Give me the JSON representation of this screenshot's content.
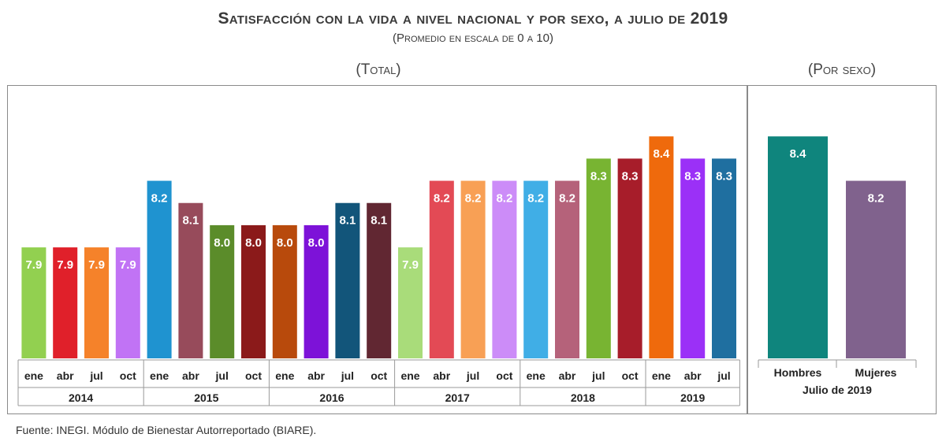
{
  "title": "Satisfacción con la vida a nivel nacional y por sexo, a julio de 2019",
  "subtitle": "(Promedio en escala de 0 a 10)",
  "panel_total_label": "(Total)",
  "panel_sex_label": "(Por sexo)",
  "footer": "Fuente: INEGI. Módulo de Bienestar Autorreportado (BIARE).",
  "chart_data": [
    {
      "type": "bar",
      "title": "(Total)",
      "categories": [
        "ene",
        "abr",
        "jul",
        "oct",
        "ene",
        "abr",
        "jul",
        "oct",
        "ene",
        "abr",
        "jul",
        "oct",
        "ene",
        "abr",
        "jul",
        "oct",
        "ene",
        "abr",
        "jul",
        "oct",
        "ene",
        "abr",
        "jul"
      ],
      "groups": [
        {
          "label": "2014",
          "count": 4
        },
        {
          "label": "2015",
          "count": 4
        },
        {
          "label": "2016",
          "count": 4
        },
        {
          "label": "2017",
          "count": 4
        },
        {
          "label": "2018",
          "count": 4
        },
        {
          "label": "2019",
          "count": 3
        }
      ],
      "values": [
        7.9,
        7.9,
        7.9,
        7.9,
        8.2,
        8.1,
        8.0,
        8.0,
        8.0,
        8.0,
        8.1,
        8.1,
        7.9,
        8.2,
        8.2,
        8.2,
        8.2,
        8.2,
        8.3,
        8.3,
        8.4,
        8.3,
        8.3
      ],
      "labels": [
        "7.9",
        "7.9",
        "7.9",
        "7.9",
        "8.2",
        "8.1",
        "8.0",
        "8.0",
        "8.0",
        "8.0",
        "8.1",
        "8.1",
        "7.9",
        "8.2",
        "8.2",
        "8.2",
        "8.2",
        "8.2",
        "8.3",
        "8.3",
        "8.4",
        "8.3",
        "8.3"
      ],
      "colors": [
        "#92d050",
        "#e0202a",
        "#f5822a",
        "#c173f5",
        "#1f93d0",
        "#974b5b",
        "#5b8c2a",
        "#8b1a1a",
        "#b84a0c",
        "#7d12d8",
        "#12557a",
        "#612732",
        "#a9dc7a",
        "#e34a55",
        "#f8a055",
        "#cc8cf8",
        "#40aee6",
        "#b5627a",
        "#78b432",
        "#a71d2a",
        "#ef6a0c",
        "#9b30f7",
        "#1f6fa0"
      ],
      "ylim": [
        7.4,
        8.5
      ],
      "xlabel": "",
      "ylabel": "",
      "grid": false
    },
    {
      "type": "bar",
      "title": "(Por sexo)",
      "categories": [
        "Hombres",
        "Mujeres"
      ],
      "group_label": "Julio de 2019",
      "values": [
        8.4,
        8.2
      ],
      "labels": [
        "8.4",
        "8.2"
      ],
      "colors": [
        "#0f857d",
        "#80628d"
      ],
      "ylim": [
        7.4,
        8.5
      ],
      "grid": false
    }
  ]
}
